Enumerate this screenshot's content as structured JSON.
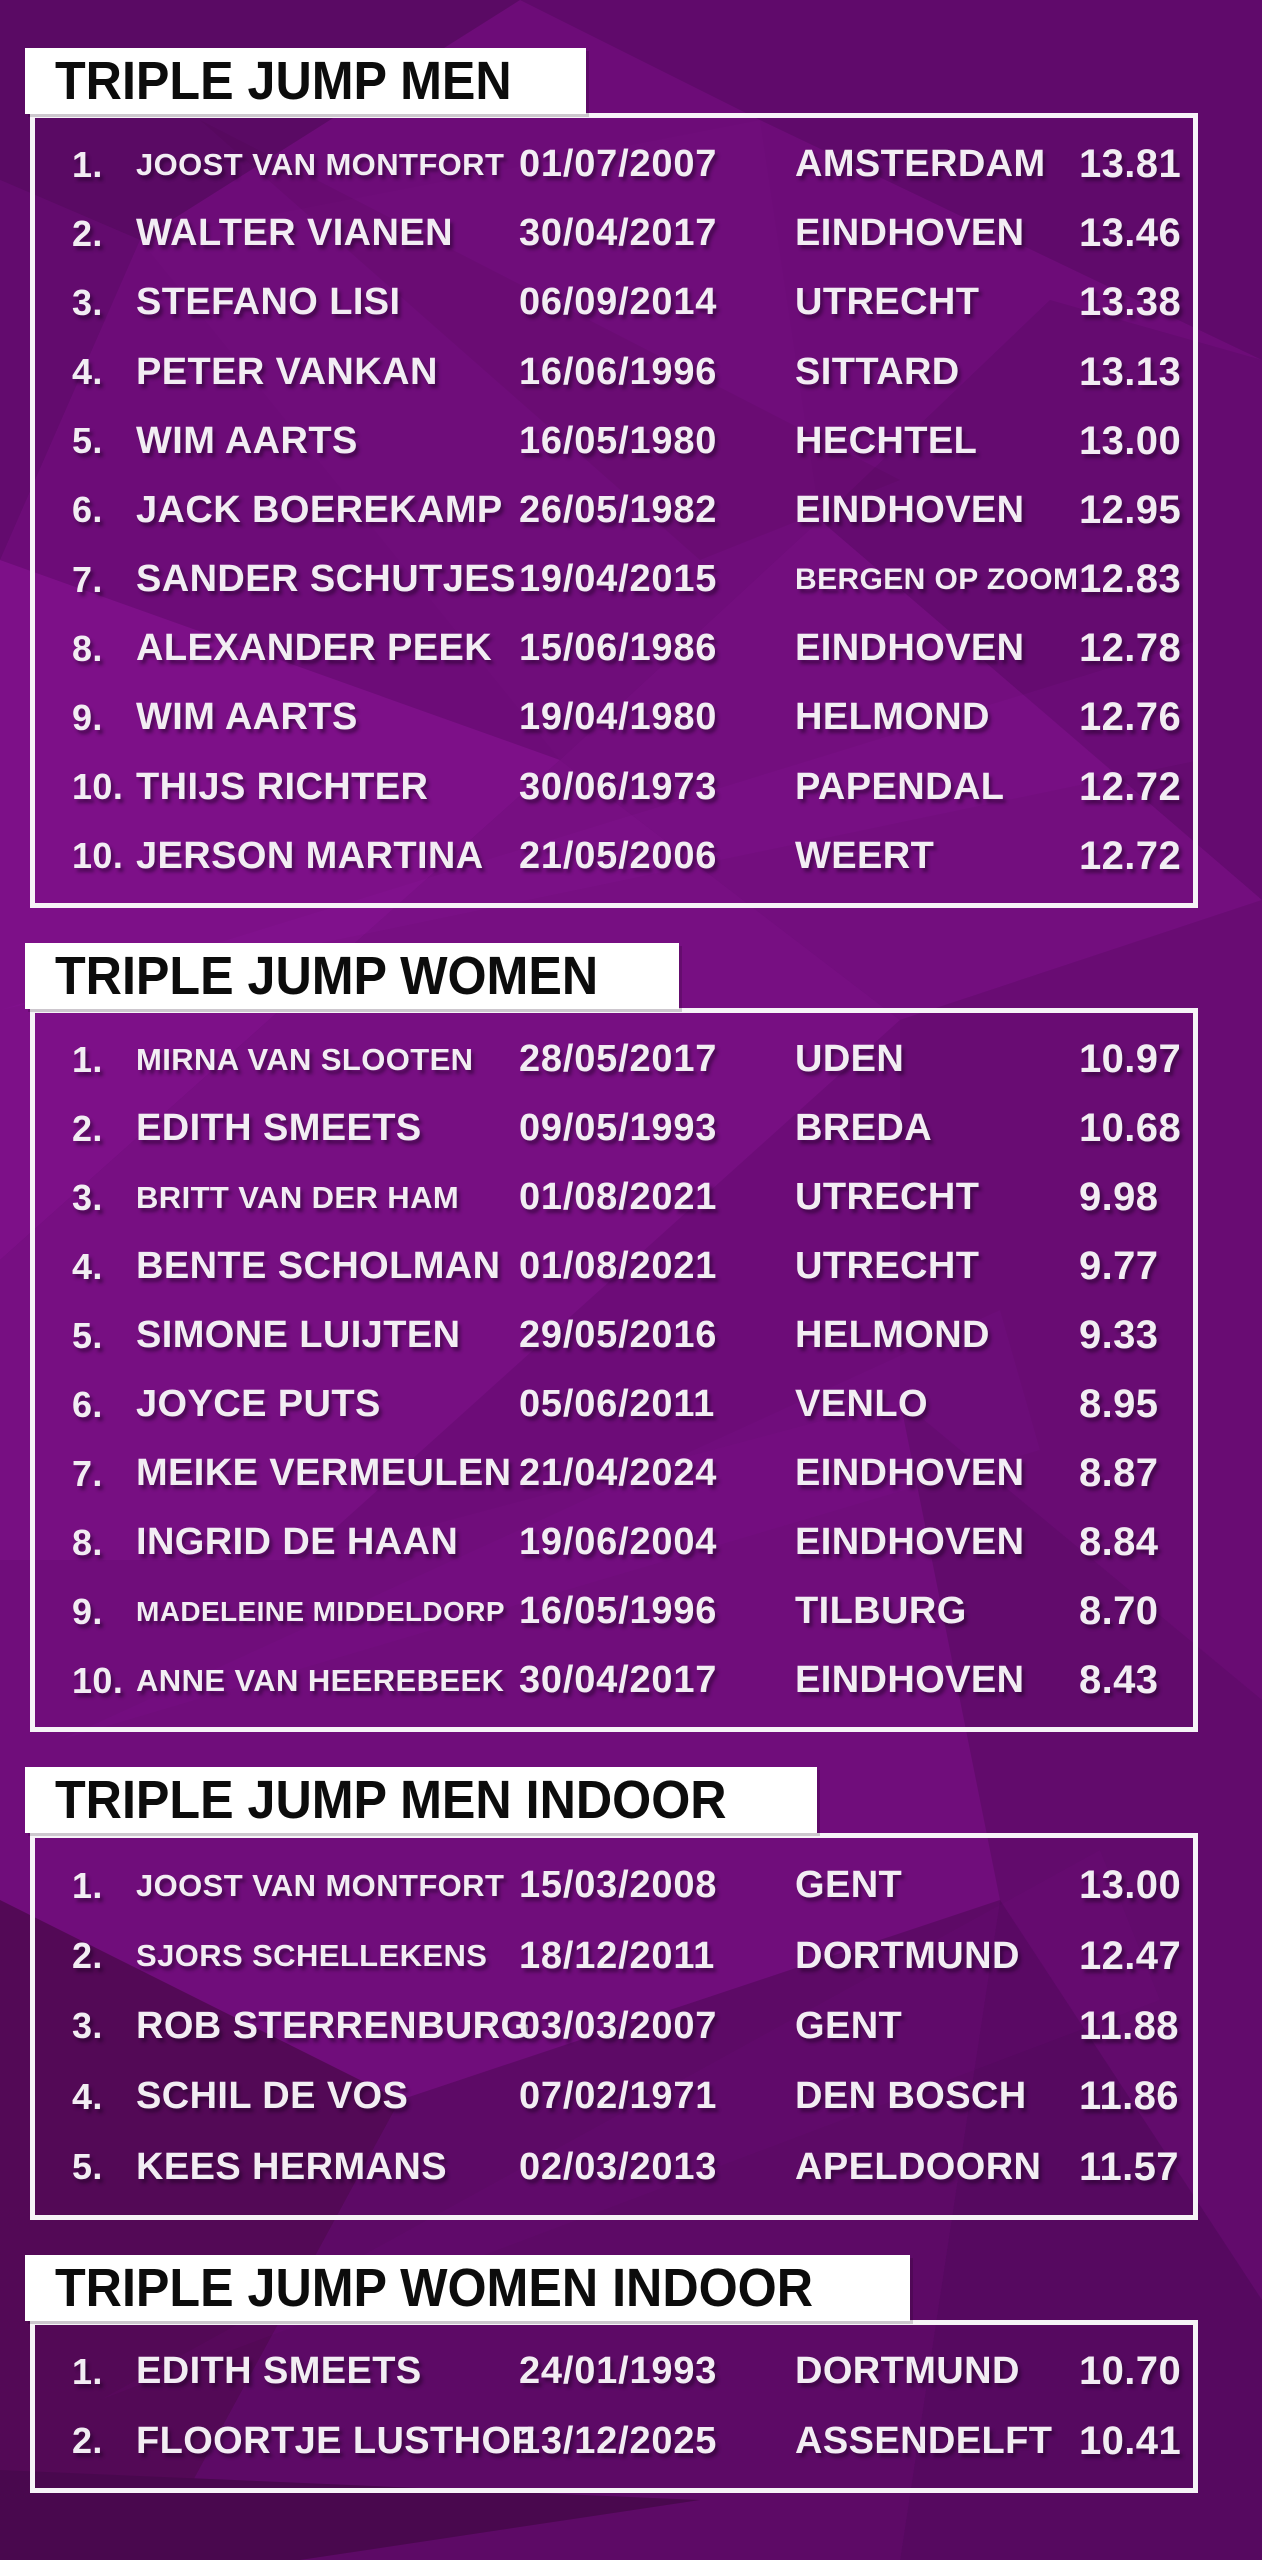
{
  "colors": {
    "background_base": "#6d0c78",
    "facet_dark": "#530956",
    "facet_light": "#7d1088",
    "table_border": "#f6f3f7",
    "title_box_bg": "#ffffff",
    "title_text": "#0c0c0c",
    "row_text": "#f2edf3"
  },
  "sections": [
    {
      "title": "TRIPLE JUMP MEN",
      "rows": [
        {
          "rank": "1.",
          "name": "JOOST VAN MONTFORT",
          "date": "01/07/2007",
          "city": "AMSTERDAM",
          "mark": "13.81"
        },
        {
          "rank": "2.",
          "name": "WALTER VIANEN",
          "date": "30/04/2017",
          "city": "EINDHOVEN",
          "mark": "13.46"
        },
        {
          "rank": "3.",
          "name": "STEFANO LISI",
          "date": "06/09/2014",
          "city": "UTRECHT",
          "mark": "13.38"
        },
        {
          "rank": "4.",
          "name": "PETER VANKAN",
          "date": "16/06/1996",
          "city": "SITTARD",
          "mark": "13.13"
        },
        {
          "rank": "5.",
          "name": "WIM AARTS",
          "date": "16/05/1980",
          "city": "HECHTEL",
          "mark": "13.00"
        },
        {
          "rank": "6.",
          "name": "JACK BOEREKAMP",
          "date": "26/05/1982",
          "city": "EINDHOVEN",
          "mark": "12.95"
        },
        {
          "rank": "7.",
          "name": "SANDER SCHUTJES",
          "date": "19/04/2015",
          "city": "BERGEN OP ZOOM",
          "mark": "12.83"
        },
        {
          "rank": "8.",
          "name": "ALEXANDER PEEK",
          "date": "15/06/1986",
          "city": "EINDHOVEN",
          "mark": "12.78"
        },
        {
          "rank": "9.",
          "name": "WIM AARTS",
          "date": "19/04/1980",
          "city": "HELMOND",
          "mark": "12.76"
        },
        {
          "rank": "10.",
          "name": "THIJS RICHTER",
          "date": "30/06/1973",
          "city": "PAPENDAL",
          "mark": "12.72"
        },
        {
          "rank": "10.",
          "name": "JERSON MARTINA",
          "date": "21/05/2006",
          "city": "WEERT",
          "mark": "12.72"
        }
      ]
    },
    {
      "title": "TRIPLE JUMP WOMEN",
      "rows": [
        {
          "rank": "1.",
          "name": "MIRNA VAN SLOOTEN",
          "date": "28/05/2017",
          "city": "UDEN",
          "mark": "10.97"
        },
        {
          "rank": "2.",
          "name": "EDITH SMEETS",
          "date": "09/05/1993",
          "city": "BREDA",
          "mark": "10.68"
        },
        {
          "rank": "3.",
          "name": "BRITT VAN DER HAM",
          "date": "01/08/2021",
          "city": "UTRECHT",
          "mark": "9.98"
        },
        {
          "rank": "4.",
          "name": "BENTE SCHOLMAN",
          "date": "01/08/2021",
          "city": "UTRECHT",
          "mark": "9.77"
        },
        {
          "rank": "5.",
          "name": "SIMONE LUIJTEN",
          "date": "29/05/2016",
          "city": "HELMOND",
          "mark": "9.33"
        },
        {
          "rank": "6.",
          "name": "JOYCE PUTS",
          "date": "05/06/2011",
          "city": "VENLO",
          "mark": "8.95"
        },
        {
          "rank": "7.",
          "name": "MEIKE VERMEULEN",
          "date": "21/04/2024",
          "city": "EINDHOVEN",
          "mark": "8.87"
        },
        {
          "rank": "8.",
          "name": "INGRID DE HAAN",
          "date": "19/06/2004",
          "city": "EINDHOVEN",
          "mark": "8.84"
        },
        {
          "rank": "9.",
          "name": "MADELEINE MIDDELDORP",
          "date": "16/05/1996",
          "city": "TILBURG",
          "mark": "8.70"
        },
        {
          "rank": "10.",
          "name": "ANNE VAN HEEREBEEK",
          "date": "30/04/2017",
          "city": "EINDHOVEN",
          "mark": "8.43"
        }
      ]
    },
    {
      "title": "TRIPLE JUMP MEN INDOOR",
      "rows": [
        {
          "rank": "1.",
          "name": "JOOST VAN MONTFORT",
          "date": "15/03/2008",
          "city": "GENT",
          "mark": "13.00"
        },
        {
          "rank": "2.",
          "name": "SJORS SCHELLEKENS",
          "date": "18/12/2011",
          "city": "DORTMUND",
          "mark": "12.47"
        },
        {
          "rank": "3.",
          "name": "ROB STERRENBURG",
          "date": "03/03/2007",
          "city": "GENT",
          "mark": "11.88"
        },
        {
          "rank": "4.",
          "name": "SCHIL DE VOS",
          "date": "07/02/1971",
          "city": "DEN BOSCH",
          "mark": "11.86"
        },
        {
          "rank": "5.",
          "name": "KEES HERMANS",
          "date": "02/03/2013",
          "city": "APELDOORN",
          "mark": "11.57"
        }
      ]
    },
    {
      "title": "TRIPLE JUMP WOMEN INDOOR",
      "rows": [
        {
          "rank": "1.",
          "name": "EDITH SMEETS",
          "date": "24/01/1993",
          "city": "DORTMUND",
          "mark": "10.70"
        },
        {
          "rank": "2.",
          "name": "FLOORTJE LUSTHOF",
          "date": "13/12/2025",
          "city": "ASSENDELFT",
          "mark": "10.41"
        }
      ]
    }
  ]
}
